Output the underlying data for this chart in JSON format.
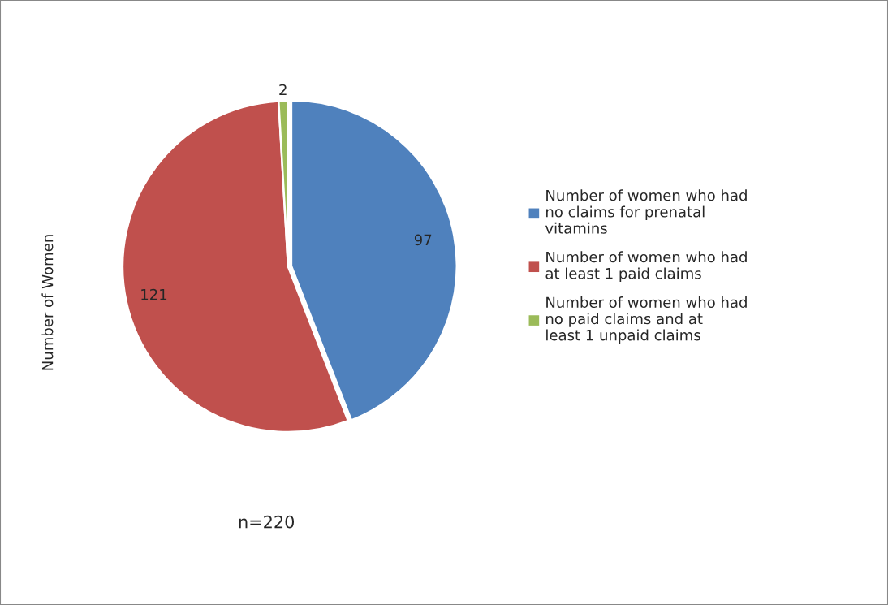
{
  "chart_data": {
    "type": "pie",
    "ylabel": "Number of Women",
    "categories": [
      "Number of women who had no claims for prenatal vitamins",
      "Number of women who had at least 1 paid claims",
      "Number of women who had no paid claims and at least 1 unpaid claims"
    ],
    "values": [
      97,
      121,
      2
    ],
    "colors": [
      "#4f81bd",
      "#c0504d",
      "#9bbb59"
    ],
    "data_labels": true,
    "legend": "right",
    "annotations": [
      "n=220"
    ]
  }
}
